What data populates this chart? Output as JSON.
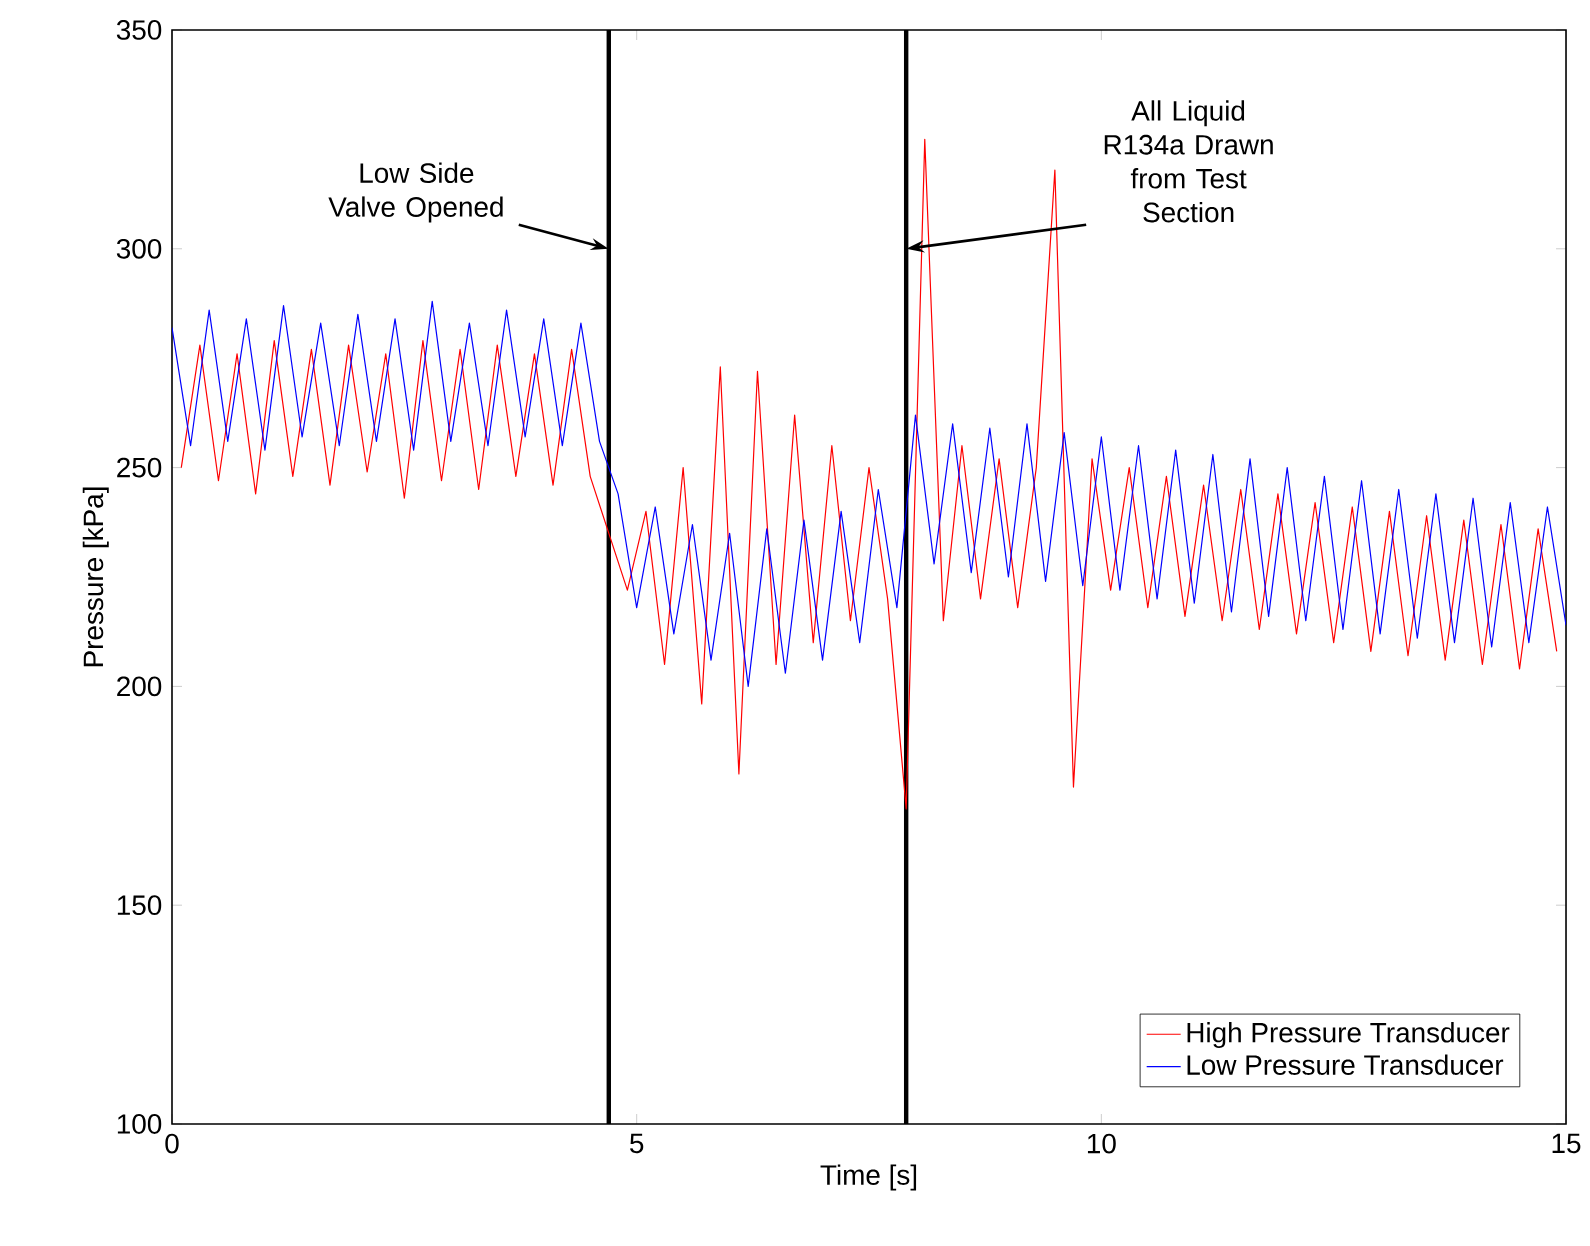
{
  "chart_data": {
    "type": "line",
    "xlabel": "Time [s]",
    "ylabel": "Pressure [kPa]",
    "xlim": [
      0,
      15
    ],
    "ylim": [
      100,
      350
    ],
    "xticks": [
      0,
      5,
      10,
      15
    ],
    "yticks": [
      100,
      150,
      200,
      250,
      300,
      350
    ],
    "legend": "bottom right",
    "grid": false,
    "marker": "none",
    "line_style": "solid",
    "series": [
      {
        "name": "High Pressure Transducer",
        "color": "#ff0000",
        "x": [
          0.1,
          0.3,
          0.5,
          0.7,
          0.9,
          1.1,
          1.3,
          1.5,
          1.7,
          1.9,
          2.1,
          2.3,
          2.5,
          2.7,
          2.9,
          3.1,
          3.3,
          3.5,
          3.7,
          3.9,
          4.1,
          4.3,
          4.5,
          4.7,
          4.9,
          5.1,
          5.3,
          5.5,
          5.7,
          5.9,
          6.1,
          6.3,
          6.5,
          6.7,
          6.9,
          7.1,
          7.3,
          7.5,
          7.7,
          7.9,
          8.1,
          8.3,
          8.5,
          8.7,
          8.9,
          9.1,
          9.3,
          9.5,
          9.7,
          9.9,
          10.1,
          10.3,
          10.5,
          10.7,
          10.9,
          11.1,
          11.3,
          11.5,
          11.7,
          11.9,
          12.1,
          12.3,
          12.5,
          12.7,
          12.9,
          13.1,
          13.3,
          13.5,
          13.7,
          13.9,
          14.1,
          14.3,
          14.5,
          14.7,
          14.9
        ],
        "values": [
          250,
          278,
          247,
          276,
          244,
          279,
          248,
          277,
          246,
          278,
          249,
          276,
          243,
          279,
          247,
          277,
          245,
          278,
          248,
          276,
          246,
          277,
          248,
          235,
          222,
          240,
          205,
          250,
          196,
          273,
          180,
          272,
          205,
          262,
          210,
          255,
          215,
          250,
          220,
          172,
          325,
          215,
          255,
          220,
          252,
          218,
          250,
          318,
          177,
          252,
          222,
          250,
          218,
          248,
          216,
          246,
          215,
          245,
          213,
          244,
          212,
          242,
          210,
          241,
          208,
          240,
          207,
          239,
          206,
          238,
          205,
          237,
          204,
          236,
          208
        ]
      },
      {
        "name": "Low Pressure Transducer",
        "color": "#0000ff",
        "x": [
          0,
          0.2,
          0.4,
          0.6,
          0.8,
          1.0,
          1.2,
          1.4,
          1.6,
          1.8,
          2.0,
          2.2,
          2.4,
          2.6,
          2.8,
          3.0,
          3.2,
          3.4,
          3.6,
          3.8,
          4.0,
          4.2,
          4.4,
          4.6,
          4.8,
          5.0,
          5.2,
          5.4,
          5.6,
          5.8,
          6.0,
          6.2,
          6.4,
          6.6,
          6.8,
          7.0,
          7.2,
          7.4,
          7.6,
          7.8,
          8.0,
          8.2,
          8.4,
          8.6,
          8.8,
          9.0,
          9.2,
          9.4,
          9.6,
          9.8,
          10.0,
          10.2,
          10.4,
          10.6,
          10.8,
          11.0,
          11.2,
          11.4,
          11.6,
          11.8,
          12.0,
          12.2,
          12.4,
          12.6,
          12.8,
          13.0,
          13.2,
          13.4,
          13.6,
          13.8,
          14.0,
          14.2,
          14.4,
          14.6,
          14.8,
          15.0
        ],
        "values": [
          282,
          255,
          286,
          256,
          284,
          254,
          287,
          257,
          283,
          255,
          285,
          256,
          284,
          254,
          288,
          256,
          283,
          255,
          286,
          257,
          284,
          255,
          283,
          256,
          244,
          218,
          241,
          212,
          237,
          206,
          235,
          200,
          236,
          203,
          238,
          206,
          240,
          210,
          245,
          218,
          262,
          228,
          260,
          226,
          259,
          225,
          260,
          224,
          258,
          223,
          257,
          222,
          255,
          220,
          254,
          219,
          253,
          217,
          252,
          216,
          250,
          215,
          248,
          213,
          247,
          212,
          245,
          211,
          244,
          210,
          243,
          209,
          242,
          210,
          241,
          214
        ]
      }
    ],
    "ref_lines": [
      {
        "axis": "x",
        "value": 4.7,
        "color": "#000000"
      },
      {
        "axis": "x",
        "value": 7.9,
        "color": "#000000"
      }
    ],
    "annotations": [
      {
        "text": "Low Side Valve Opened",
        "x": 4.7,
        "y": 300
      },
      {
        "text": "All Liquid R134a Drawn from Test Section",
        "x": 7.9,
        "y": 300
      }
    ]
  }
}
